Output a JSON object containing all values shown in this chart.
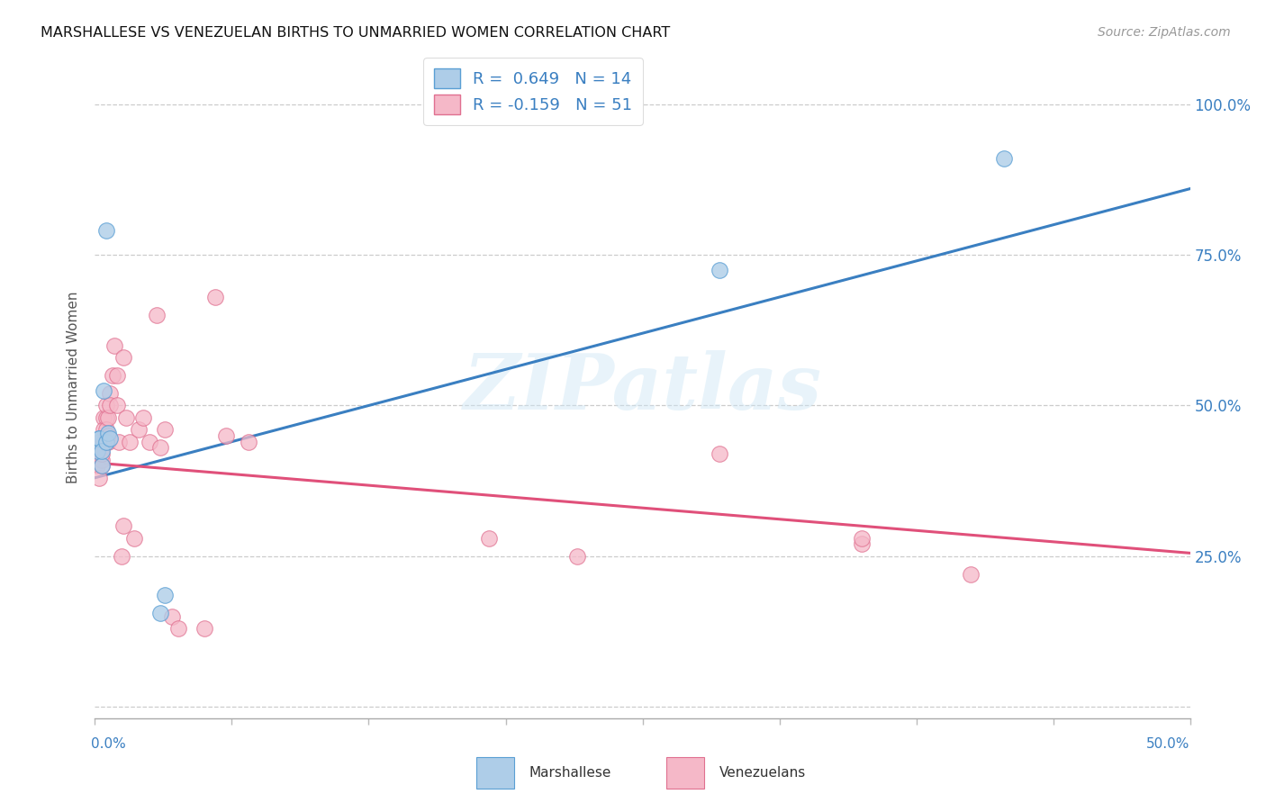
{
  "title": "MARSHALLESE VS VENEZUELAN BIRTHS TO UNMARRIED WOMEN CORRELATION CHART",
  "source": "Source: ZipAtlas.com",
  "ylabel": "Births to Unmarried Women",
  "xlim": [
    0.0,
    0.5
  ],
  "ylim": [
    -0.02,
    1.08
  ],
  "ytick_vals": [
    0.0,
    0.25,
    0.5,
    0.75,
    1.0
  ],
  "ytick_labels": [
    "",
    "25.0%",
    "50.0%",
    "75.0%",
    "100.0%"
  ],
  "blue_fill": "#aecde8",
  "pink_fill": "#f5b8c8",
  "blue_edge": "#5a9fd4",
  "pink_edge": "#e07090",
  "blue_line": "#3a7fc1",
  "pink_line": "#e0507a",
  "legend_blue": "R =  0.649   N = 14",
  "legend_pink": "R = -0.159   N = 51",
  "watermark": "ZIPatlas",
  "bottom_labels": [
    "Marshallese",
    "Venezuelans"
  ],
  "blue_line_x": [
    0.0,
    0.5
  ],
  "blue_line_y": [
    0.38,
    0.86
  ],
  "pink_line_x": [
    0.0,
    0.5
  ],
  "pink_line_y": [
    0.405,
    0.255
  ],
  "marsh_x": [
    0.001,
    0.002,
    0.002,
    0.003,
    0.003,
    0.004,
    0.005,
    0.005,
    0.006,
    0.007,
    0.03,
    0.032,
    0.285,
    0.415
  ],
  "marsh_y": [
    0.425,
    0.445,
    0.445,
    0.4,
    0.425,
    0.525,
    0.79,
    0.44,
    0.455,
    0.445,
    0.155,
    0.185,
    0.725,
    0.91
  ],
  "vene_x": [
    0.001,
    0.001,
    0.002,
    0.002,
    0.002,
    0.002,
    0.003,
    0.003,
    0.003,
    0.003,
    0.004,
    0.004,
    0.004,
    0.005,
    0.005,
    0.005,
    0.005,
    0.006,
    0.006,
    0.006,
    0.007,
    0.007,
    0.008,
    0.009,
    0.01,
    0.01,
    0.011,
    0.012,
    0.013,
    0.013,
    0.014,
    0.016,
    0.018,
    0.02,
    0.022,
    0.025,
    0.028,
    0.03,
    0.032,
    0.035,
    0.038,
    0.05,
    0.055,
    0.06,
    0.07,
    0.18,
    0.22,
    0.285,
    0.35,
    0.4,
    0.35
  ],
  "vene_y": [
    0.42,
    0.4,
    0.44,
    0.42,
    0.38,
    0.43,
    0.43,
    0.41,
    0.4,
    0.42,
    0.48,
    0.46,
    0.44,
    0.48,
    0.5,
    0.46,
    0.44,
    0.44,
    0.48,
    0.45,
    0.52,
    0.5,
    0.55,
    0.6,
    0.55,
    0.5,
    0.44,
    0.25,
    0.3,
    0.58,
    0.48,
    0.44,
    0.28,
    0.46,
    0.48,
    0.44,
    0.65,
    0.43,
    0.46,
    0.15,
    0.13,
    0.13,
    0.68,
    0.45,
    0.44,
    0.28,
    0.25,
    0.42,
    0.27,
    0.22,
    0.28
  ]
}
